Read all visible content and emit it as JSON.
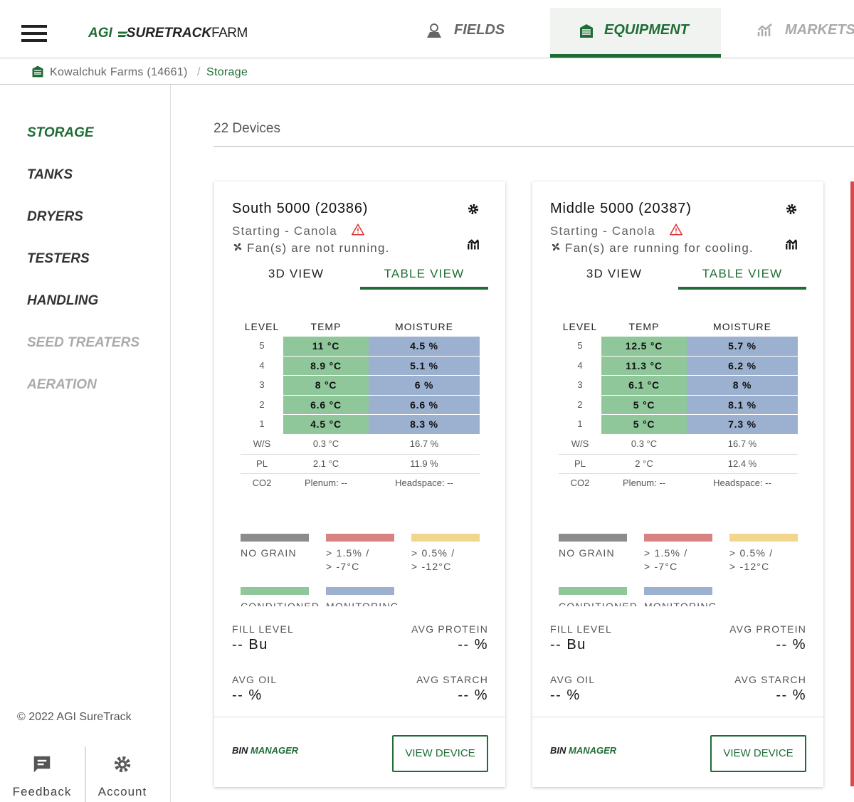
{
  "header": {
    "logo": [
      "AGI",
      "SURETRACK",
      "FARM"
    ],
    "nav": [
      "FIELDS",
      "EQUIPMENT",
      "MARKETS"
    ],
    "active_nav": 1
  },
  "breadcrumb": [
    "Kowalchuk Farms (14661)",
    "Storage"
  ],
  "sidebar": {
    "items": [
      "STORAGE",
      "TANKS",
      "DRYERS",
      "TESTERS",
      "HANDLING",
      "SEED TREATERS",
      "AERATION"
    ],
    "active": 0,
    "disabled": [
      5,
      6
    ],
    "copyright": "© 2022 AGI SureTrack",
    "footer": [
      "Feedback",
      "Account"
    ]
  },
  "device_count": "22 Devices",
  "card_common": {
    "tabs": [
      "3D VIEW",
      "TABLE VIEW"
    ],
    "table_headers": [
      "LEVEL",
      "TEMP",
      "MOISTURE"
    ],
    "legend": [
      {
        "label": [
          "NO GRAIN"
        ],
        "color": "#8c8c8c"
      },
      {
        "label": [
          "> 1.5% /",
          "> -7°C"
        ],
        "color": "#d98282"
      },
      {
        "label": [
          "> 0.5% /",
          "> -12°C"
        ],
        "color": "#f1d68b"
      },
      {
        "label": [
          "CONDITIONED"
        ],
        "color": "#8fc79a"
      },
      {
        "label": [
          "MONITORING"
        ],
        "color": "#9cb1cf"
      }
    ],
    "stat_labels": [
      "FILL LEVEL",
      "AVG PROTEIN",
      "AVG OIL",
      "AVG STARCH"
    ],
    "footer_brand": [
      "BIN ",
      "MANAGER"
    ],
    "button": "VIEW DEVICE",
    "temp_color": "#8fc79a",
    "moisture_color": "#9cb1cf"
  },
  "cards": [
    {
      "title": "South 5000 (20386)",
      "status": "Starting - Canola",
      "fan": "Fan(s) are not running.",
      "levels": [
        [
          "5",
          "11 °C",
          "4.5 %"
        ],
        [
          "4",
          "8.9 °C",
          "5.1 %"
        ],
        [
          "3",
          "8 °C",
          "6 %"
        ],
        [
          "2",
          "6.6 °C",
          "6.6 %"
        ],
        [
          "1",
          "4.5 °C",
          "8.3 %"
        ]
      ],
      "extra": [
        [
          "W/S",
          "0.3 °C",
          "16.7 %"
        ],
        [
          "PL",
          "2.1 °C",
          "11.9 %"
        ],
        [
          "CO2",
          "Plenum: --",
          "Headspace: --"
        ]
      ],
      "stats": [
        "-- Bu",
        "-- %",
        "-- %",
        "-- %"
      ]
    },
    {
      "title": "Middle 5000 (20387)",
      "status": "Starting - Canola",
      "fan": "Fan(s) are running for cooling.",
      "levels": [
        [
          "5",
          "12.5 °C",
          "5.7 %"
        ],
        [
          "4",
          "11.3 °C",
          "6.2 %"
        ],
        [
          "3",
          "6.1 °C",
          "8 %"
        ],
        [
          "2",
          "5 °C",
          "8.1 %"
        ],
        [
          "1",
          "5 °C",
          "7.3 %"
        ]
      ],
      "extra": [
        [
          "W/S",
          "0.3 °C",
          "16.7 %"
        ],
        [
          "PL",
          "2 °C",
          "12.4 %"
        ],
        [
          "CO2",
          "Plenum: --",
          "Headspace: --"
        ]
      ],
      "stats": [
        "-- Bu",
        "-- %",
        "-- %",
        "-- %"
      ]
    }
  ]
}
